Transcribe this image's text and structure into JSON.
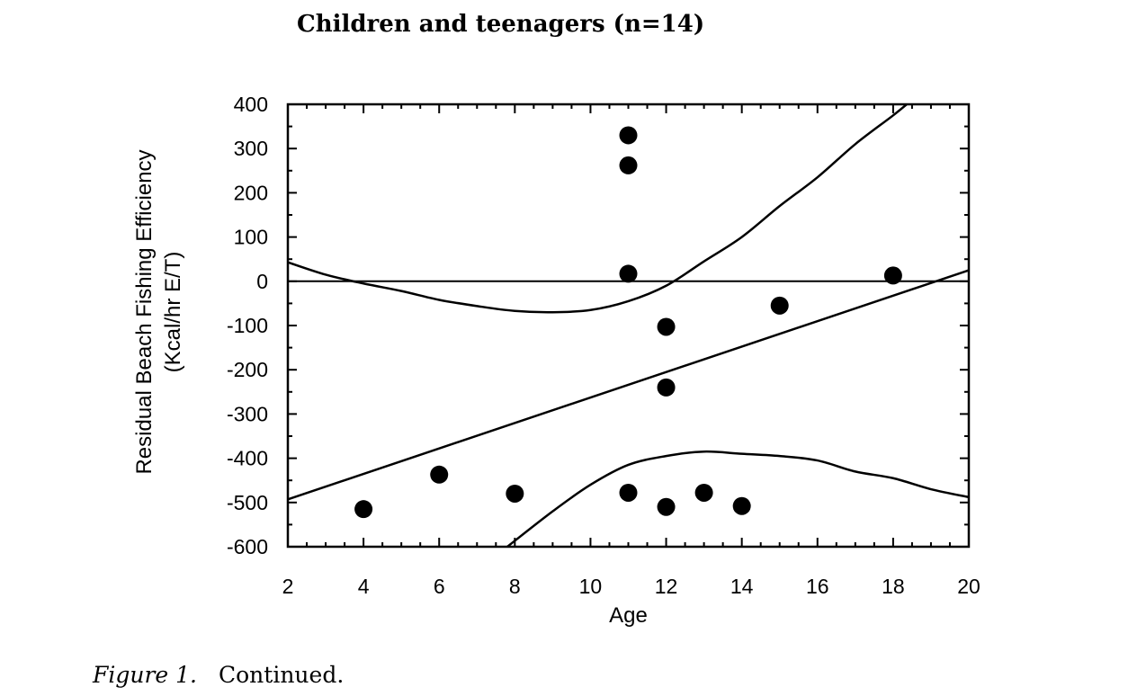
{
  "page": {
    "title": "Children and teenagers (n=14)",
    "caption_label": "Figure 1.",
    "caption_text": "Continued."
  },
  "chart_data": {
    "type": "scatter",
    "title": "Children and teenagers (n=14)",
    "xlabel": "Age",
    "ylabel_lines": [
      "Residual Beach Fishing Efficiency",
      "(Kcal/hr E/T)"
    ],
    "xlim": [
      2,
      20
    ],
    "ylim": [
      -600,
      400
    ],
    "xticks": [
      2,
      4,
      6,
      8,
      10,
      12,
      14,
      16,
      18,
      20
    ],
    "yticks": [
      400,
      300,
      200,
      100,
      0,
      -100,
      -200,
      -300,
      -400,
      -500,
      -600
    ],
    "grid": false,
    "points": [
      {
        "x": 4,
        "y": -515
      },
      {
        "x": 6,
        "y": -437
      },
      {
        "x": 8,
        "y": -480
      },
      {
        "x": 11,
        "y": 330
      },
      {
        "x": 11,
        "y": 262
      },
      {
        "x": 11,
        "y": 17
      },
      {
        "x": 11,
        "y": -478
      },
      {
        "x": 12,
        "y": -103
      },
      {
        "x": 12,
        "y": -240
      },
      {
        "x": 12,
        "y": -510
      },
      {
        "x": 13,
        "y": -478
      },
      {
        "x": 14,
        "y": -508
      },
      {
        "x": 15,
        "y": -55
      },
      {
        "x": 18,
        "y": 13
      }
    ],
    "zero_line": 0,
    "regression_line": {
      "x": [
        2,
        20
      ],
      "y": [
        -493,
        25
      ]
    },
    "confidence_band_upper": {
      "x": [
        2,
        3,
        4,
        5,
        6,
        7,
        8,
        9,
        10,
        11,
        12,
        13,
        14,
        15,
        16,
        17,
        18,
        18.5
      ],
      "y": [
        43,
        15,
        -5,
        -22,
        -42,
        -56,
        -67,
        -70,
        -65,
        -45,
        -10,
        45,
        100,
        170,
        235,
        310,
        375,
        410
      ]
    },
    "confidence_band_lower": {
      "x": [
        7.8,
        9,
        10,
        11,
        12,
        13,
        14,
        15,
        16,
        17,
        18,
        19,
        20
      ],
      "y": [
        -600,
        -520,
        -460,
        -415,
        -395,
        -385,
        -390,
        -395,
        -405,
        -430,
        -445,
        -470,
        -488
      ]
    }
  }
}
